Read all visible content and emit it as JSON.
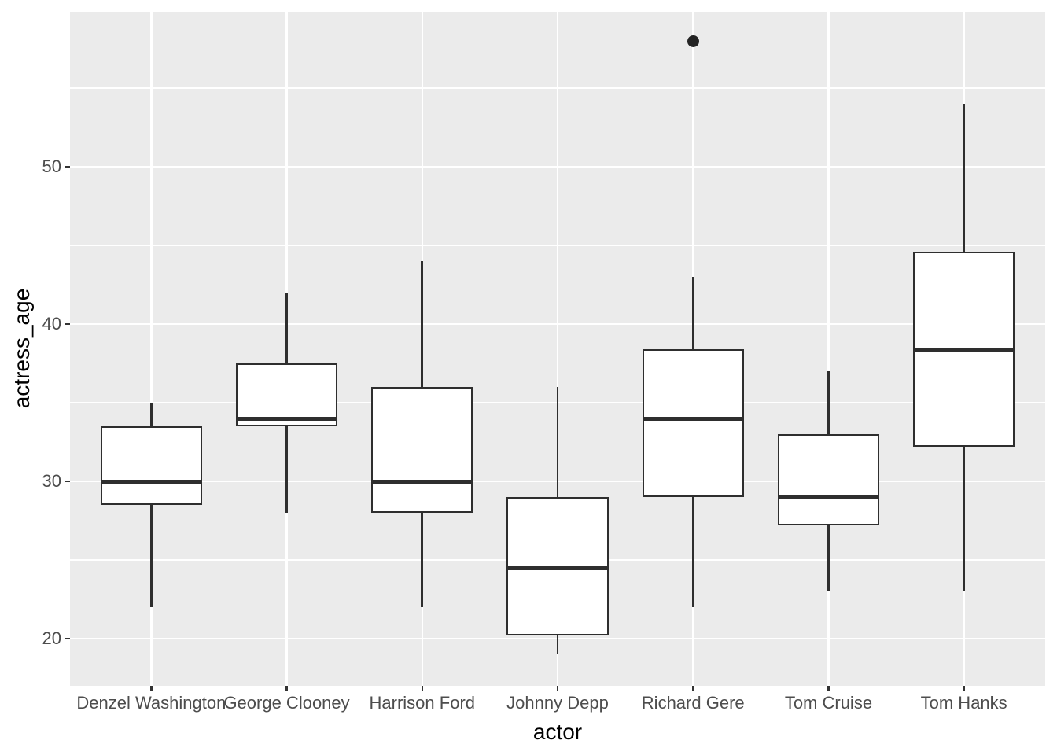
{
  "page": {
    "background": "#FFFFFF"
  },
  "axes": {
    "x_title": "actor",
    "y_title": "actress_age",
    "y_tick_labels": [
      "20",
      "30",
      "40",
      "50"
    ],
    "x_tick_labels": [
      "Denzel Washington",
      "George Clooney",
      "Harrison Ford",
      "Johnny Depp",
      "Richard Gere",
      "Tom Cruise",
      "Tom Hanks"
    ]
  },
  "chart_data": {
    "type": "boxplot",
    "title": "",
    "xlabel": "actor",
    "ylabel": "actress_age",
    "categories": [
      "Denzel Washington",
      "George Clooney",
      "Harrison Ford",
      "Johnny Depp",
      "Richard Gere",
      "Tom Cruise",
      "Tom Hanks"
    ],
    "series": [
      {
        "name": "Denzel Washington",
        "whisker_low": 22,
        "q1": 28.5,
        "median": 30,
        "q3": 33.5,
        "whisker_high": 35,
        "outliers": []
      },
      {
        "name": "George Clooney",
        "whisker_low": 28,
        "q1": 33.5,
        "median": 34,
        "q3": 37.5,
        "whisker_high": 42,
        "outliers": []
      },
      {
        "name": "Harrison Ford",
        "whisker_low": 22,
        "q1": 28,
        "median": 30,
        "q3": 36,
        "whisker_high": 44,
        "outliers": []
      },
      {
        "name": "Johnny Depp",
        "whisker_low": 19,
        "q1": 20.2,
        "median": 24.5,
        "q3": 29,
        "whisker_high": 36,
        "outliers": []
      },
      {
        "name": "Richard Gere",
        "whisker_low": 22,
        "q1": 29,
        "median": 34,
        "q3": 38.4,
        "whisker_high": 43,
        "outliers": [
          58
        ]
      },
      {
        "name": "Tom Cruise",
        "whisker_low": 23,
        "q1": 27.2,
        "median": 29,
        "q3": 33,
        "whisker_high": 37,
        "outliers": []
      },
      {
        "name": "Tom Hanks",
        "whisker_low": 23,
        "q1": 32.2,
        "median": 38.4,
        "q3": 44.6,
        "whisker_high": 54,
        "outliers": []
      }
    ],
    "ylim": [
      17.0,
      59.85
    ],
    "yticks": [
      20,
      30,
      40,
      50
    ],
    "yticks_minor": [
      25,
      35,
      45,
      55
    ],
    "grid": {
      "horizontal": "major+minor",
      "vertical": "major-only",
      "color": "#FFFFFF"
    },
    "legend": "none",
    "panel_background": "#EBEBEB",
    "box_width_fraction": 0.75
  },
  "colors": {
    "panel_bg": "#EBEBEB",
    "grid": "#FFFFFF",
    "box_stroke": "#2E2E2E",
    "box_fill": "#FFFFFF",
    "outlier": "#242424",
    "tick_mark": "#333333",
    "tick_label": "#4D4D4D",
    "axis_title": "#000000"
  }
}
